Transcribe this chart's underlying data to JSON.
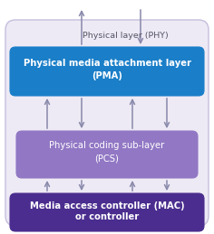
{
  "bg_color": "#eeeaf5",
  "bg_border_color": "#c5bedd",
  "pma_color": "#1a7ec8",
  "pma_border_color": "#1a7ec8",
  "pcs_color": "#9177c4",
  "pcs_border_color": "#9177c4",
  "mac_color": "#4a2d8e",
  "mac_border_color": "#4a2d8e",
  "arrow_color": "#8888aa",
  "text_color_white": "#ffffff",
  "text_color_gray": "#555566",
  "pma_label_line1": "Physical media attachment layer",
  "pma_label_line2": "(PMA)",
  "pcs_label_line1": "Physical coding sub-layer",
  "pcs_label_line2": "(PCS)",
  "mac_label_line1": "Media access controller (MAC)",
  "mac_label_line2": "or controller",
  "phy_label": "Physical layer (PHY)",
  "figsize": [
    2.36,
    2.59
  ],
  "dpi": 100
}
